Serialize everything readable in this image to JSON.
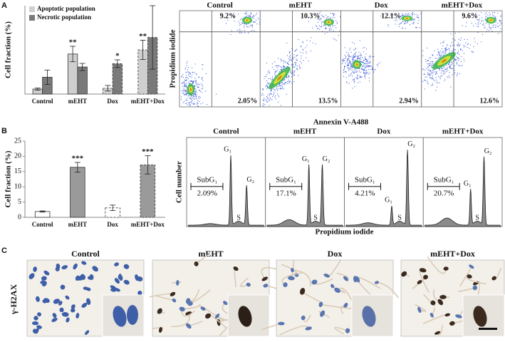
{
  "panel_labels": [
    "A",
    "B",
    "C"
  ],
  "chart_data": [
    {
      "type": "bar",
      "y_label": "Cell fraction (%)",
      "categories": [
        "Control",
        "mEHT",
        "Dox",
        "mEHT+Dox"
      ],
      "series": [
        {
          "name": "Apoptotic population",
          "color": "#cfcfcf",
          "values": [
            1.8,
            14.5,
            2.1,
            16
          ],
          "errors": [
            0.4,
            2.8,
            1,
            3.5
          ],
          "significance": [
            null,
            "**",
            null,
            "**"
          ]
        },
        {
          "name": "Necrotic population",
          "color": "#7a7a7a",
          "values": [
            6.1,
            9.8,
            11,
            20.5
          ],
          "errors": [
            2.6,
            1.3,
            1.4,
            11.5
          ],
          "significance": [
            null,
            null,
            "*",
            null
          ]
        }
      ],
      "dashed": [
        false,
        false,
        true,
        true
      ],
      "ylim": [
        0,
        32
      ],
      "legend": "top-left"
    },
    {
      "type": "bar",
      "y_label": "Cell fraction (%)",
      "categories": [
        "Control",
        "mEHT",
        "Dox",
        "mEHT+Dox"
      ],
      "values": [
        1.9,
        16.4,
        3.1,
        17.2
      ],
      "errors": [
        0.2,
        1.6,
        0.9,
        3
      ],
      "colors": [
        "#ffffff",
        "#9a9a9a",
        "#ffffff",
        "#9a9a9a"
      ],
      "dashed": [
        false,
        false,
        true,
        true
      ],
      "significance": [
        null,
        "***",
        null,
        "***"
      ],
      "ylim": [
        0,
        25
      ],
      "yticks": [
        0,
        5,
        10,
        15,
        20,
        25
      ]
    }
  ],
  "flow": {
    "y_label": "Propidium iodide",
    "x_label": "Annexin V-A488",
    "plots": [
      {
        "title": "Control",
        "upper_right": "9.2%",
        "lower_right": "2.05%"
      },
      {
        "title": "mEHT",
        "upper_right": "10.3%",
        "lower_right": "13.5%"
      },
      {
        "title": "Dox",
        "upper_right": "12.1%",
        "lower_right": "2.94%"
      },
      {
        "title": "mEHT+Dox",
        "upper_right": "9.6%",
        "lower_right": "12.6%"
      }
    ]
  },
  "cell_cycle": {
    "y_label": "Cell number",
    "x_label": "Propidium iodide",
    "gate": "SubG₁",
    "plots": [
      {
        "title": "Control",
        "subg1": "2.09%",
        "peaks": [
          "G₁",
          "G₂",
          "S"
        ]
      },
      {
        "title": "mEHT",
        "subg1": "17.1%",
        "peaks": [
          "G₁",
          "G₂",
          "S"
        ]
      },
      {
        "title": "Dox",
        "subg1": "4.21%",
        "peaks": [
          "G₁",
          "G₂",
          "S"
        ]
      },
      {
        "title": "mEHT+Dox",
        "subg1": "20.7%",
        "peaks": [
          "G₁",
          "G₂",
          "S"
        ]
      }
    ]
  },
  "microscopy": {
    "y_label": "γ-H2AX",
    "panels": [
      "Control",
      "mEHT",
      "Dox",
      "mEHT+Dox"
    ]
  }
}
